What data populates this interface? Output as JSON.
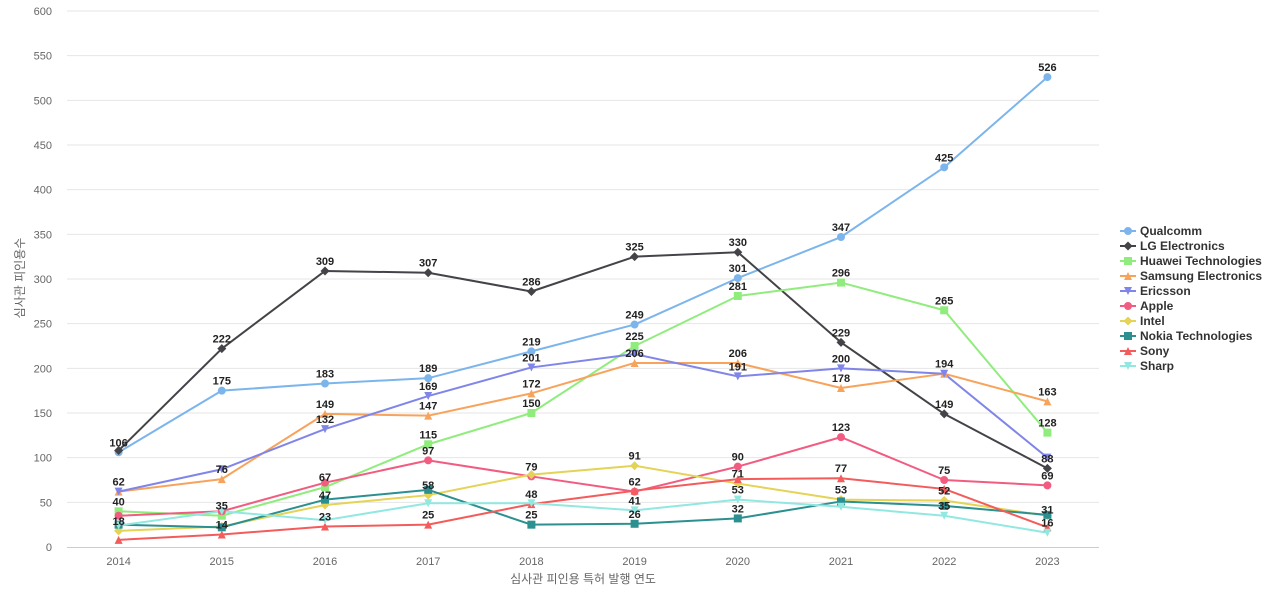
{
  "chart_data": {
    "type": "line",
    "title": "",
    "xlabel": "심사관 피인용 특허 발행 연도",
    "ylabel": "심사관 피인용수",
    "x": [
      "2014",
      "2015",
      "2016",
      "2017",
      "2018",
      "2019",
      "2020",
      "2021",
      "2022",
      "2023"
    ],
    "ylim": [
      0,
      600
    ],
    "yticks": [
      0,
      50,
      100,
      150,
      200,
      250,
      300,
      350,
      400,
      450,
      500,
      550,
      600
    ],
    "grid": true,
    "legend_position": "right",
    "series": [
      {
        "name": "Qualcomm",
        "color": "#7cb5ec",
        "marker": "circle",
        "values": [
          106,
          175,
          183,
          189,
          219,
          249,
          301,
          347,
          425,
          526
        ]
      },
      {
        "name": "LG Electronics",
        "color": "#434348",
        "marker": "diamond",
        "values": [
          108,
          222,
          309,
          307,
          286,
          325,
          330,
          229,
          149,
          88
        ]
      },
      {
        "name": "Huawei Technologies",
        "color": "#90ed7d",
        "marker": "square",
        "values": [
          40,
          35,
          67,
          115,
          150,
          225,
          281,
          296,
          265,
          128
        ]
      },
      {
        "name": "Samsung Electronics",
        "color": "#f7a35c",
        "marker": "triangle",
        "values": [
          62,
          76,
          149,
          147,
          172,
          206,
          206,
          178,
          194,
          163
        ]
      },
      {
        "name": "Ericsson",
        "color": "#8085e9",
        "marker": "triangle-down",
        "values": [
          62,
          87,
          132,
          169,
          201,
          216,
          191,
          200,
          194,
          100
        ]
      },
      {
        "name": "Apple",
        "color": "#f15c80",
        "marker": "circle",
        "values": [
          35,
          40,
          72,
          97,
          79,
          62,
          90,
          123,
          75,
          69
        ]
      },
      {
        "name": "Intel",
        "color": "#e4d354",
        "marker": "diamond",
        "values": [
          18,
          23,
          47,
          58,
          81,
          91,
          71,
          53,
          52,
          35
        ]
      },
      {
        "name": "Nokia Technologies",
        "color": "#2b908f",
        "marker": "square",
        "values": [
          25,
          22,
          53,
          64,
          25,
          26,
          32,
          51,
          46,
          36
        ]
      },
      {
        "name": "Sony",
        "color": "#f45b5b",
        "marker": "triangle",
        "values": [
          8,
          14,
          23,
          25,
          48,
          63,
          76,
          77,
          65,
          22
        ]
      },
      {
        "name": "Sharp",
        "color": "#91e8e1",
        "marker": "triangle-down",
        "values": [
          24,
          40,
          30,
          49,
          49,
          41,
          53,
          45,
          35,
          16
        ]
      }
    ],
    "data_labels": [
      {
        "year": "2014",
        "value": 106,
        "text": "106"
      },
      {
        "year": "2014",
        "value": 62,
        "text": "62"
      },
      {
        "year": "2014",
        "value": 40,
        "text": "40"
      },
      {
        "year": "2014",
        "value": 18,
        "text": "18"
      },
      {
        "year": "2015",
        "value": 222,
        "text": "222"
      },
      {
        "year": "2015",
        "value": 175,
        "text": "175"
      },
      {
        "year": "2015",
        "value": 76,
        "text": "76"
      },
      {
        "year": "2015",
        "value": 35,
        "text": "35"
      },
      {
        "year": "2015",
        "value": 14,
        "text": "14"
      },
      {
        "year": "2016",
        "value": 309,
        "text": "309"
      },
      {
        "year": "2016",
        "value": 183,
        "text": "183"
      },
      {
        "year": "2016",
        "value": 149,
        "text": "149"
      },
      {
        "year": "2016",
        "value": 132,
        "text": "132"
      },
      {
        "year": "2016",
        "value": 67,
        "text": "67"
      },
      {
        "year": "2016",
        "value": 47,
        "text": "47"
      },
      {
        "year": "2016",
        "value": 23,
        "text": "23"
      },
      {
        "year": "2017",
        "value": 307,
        "text": "307"
      },
      {
        "year": "2017",
        "value": 189,
        "text": "189"
      },
      {
        "year": "2017",
        "value": 169,
        "text": "169"
      },
      {
        "year": "2017",
        "value": 147,
        "text": "147"
      },
      {
        "year": "2017",
        "value": 115,
        "text": "115"
      },
      {
        "year": "2017",
        "value": 97,
        "text": "97"
      },
      {
        "year": "2017",
        "value": 58,
        "text": "58"
      },
      {
        "year": "2017",
        "value": 25,
        "text": "25"
      },
      {
        "year": "2018",
        "value": 286,
        "text": "286"
      },
      {
        "year": "2018",
        "value": 219,
        "text": "219"
      },
      {
        "year": "2018",
        "value": 201,
        "text": "201"
      },
      {
        "year": "2018",
        "value": 172,
        "text": "172"
      },
      {
        "year": "2018",
        "value": 150,
        "text": "150"
      },
      {
        "year": "2018",
        "value": 79,
        "text": "79"
      },
      {
        "year": "2018",
        "value": 48,
        "text": "48"
      },
      {
        "year": "2018",
        "value": 25,
        "text": "25"
      },
      {
        "year": "2019",
        "value": 325,
        "text": "325"
      },
      {
        "year": "2019",
        "value": 249,
        "text": "249"
      },
      {
        "year": "2019",
        "value": 225,
        "text": "225"
      },
      {
        "year": "2019",
        "value": 206,
        "text": "206"
      },
      {
        "year": "2019",
        "value": 91,
        "text": "91"
      },
      {
        "year": "2019",
        "value": 62,
        "text": "62"
      },
      {
        "year": "2019",
        "value": 41,
        "text": "41"
      },
      {
        "year": "2019",
        "value": 26,
        "text": "26"
      },
      {
        "year": "2020",
        "value": 330,
        "text": "330"
      },
      {
        "year": "2020",
        "value": 301,
        "text": "301"
      },
      {
        "year": "2020",
        "value": 281,
        "text": "281"
      },
      {
        "year": "2020",
        "value": 206,
        "text": "206"
      },
      {
        "year": "2020",
        "value": 191,
        "text": "191"
      },
      {
        "year": "2020",
        "value": 90,
        "text": "90"
      },
      {
        "year": "2020",
        "value": 71,
        "text": "71"
      },
      {
        "year": "2020",
        "value": 53,
        "text": "53"
      },
      {
        "year": "2020",
        "value": 32,
        "text": "32"
      },
      {
        "year": "2021",
        "value": 347,
        "text": "347"
      },
      {
        "year": "2021",
        "value": 296,
        "text": "296"
      },
      {
        "year": "2021",
        "value": 229,
        "text": "229"
      },
      {
        "year": "2021",
        "value": 200,
        "text": "200"
      },
      {
        "year": "2021",
        "value": 178,
        "text": "178"
      },
      {
        "year": "2021",
        "value": 123,
        "text": "123"
      },
      {
        "year": "2021",
        "value": 77,
        "text": "77"
      },
      {
        "year": "2021",
        "value": 53,
        "text": "53"
      },
      {
        "year": "2022",
        "value": 425,
        "text": "425"
      },
      {
        "year": "2022",
        "value": 265,
        "text": "265"
      },
      {
        "year": "2022",
        "value": 194,
        "text": "194"
      },
      {
        "year": "2022",
        "value": 149,
        "text": "149"
      },
      {
        "year": "2022",
        "value": 75,
        "text": "75"
      },
      {
        "year": "2022",
        "value": 52,
        "text": "52"
      },
      {
        "year": "2022",
        "value": 35,
        "text": "35"
      },
      {
        "year": "2023",
        "value": 526,
        "text": "526"
      },
      {
        "year": "2023",
        "value": 163,
        "text": "163"
      },
      {
        "year": "2023",
        "value": 128,
        "text": "128"
      },
      {
        "year": "2023",
        "value": 88,
        "text": "88"
      },
      {
        "year": "2023",
        "value": 69,
        "text": "69"
      },
      {
        "year": "2023",
        "value": 31,
        "text": "31"
      },
      {
        "year": "2023",
        "value": 16,
        "text": "16"
      }
    ]
  }
}
